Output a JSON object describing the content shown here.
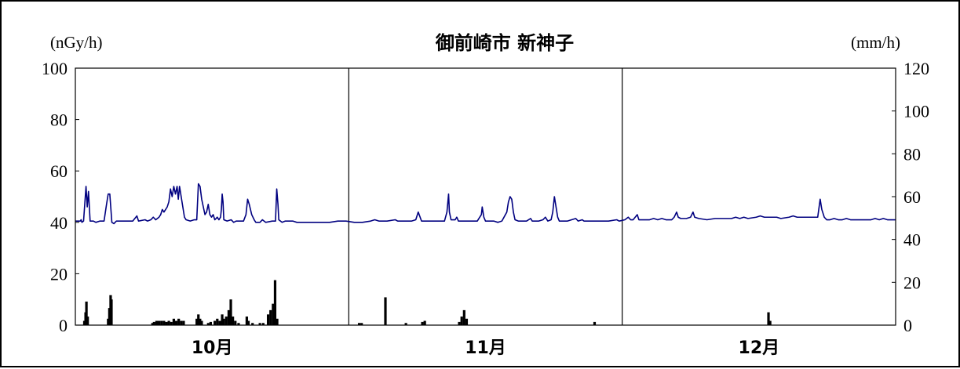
{
  "chart_data": {
    "type": "line",
    "title": "御前崎市 新神子",
    "left_axis_unit": "(nGy/h)",
    "right_axis_unit": "(mm/h)",
    "categories": [
      "10月",
      "11月",
      "12月"
    ],
    "y_left": {
      "min": 0,
      "max": 100,
      "ticks": [
        "0",
        "20",
        "40",
        "60",
        "80",
        "100"
      ]
    },
    "y_right": {
      "min": 0,
      "max": 120,
      "ticks": [
        "0",
        "20",
        "40",
        "60",
        "80",
        "100",
        "120"
      ]
    },
    "series": [
      {
        "axis": "left",
        "color": "#000080",
        "type": "line",
        "baseline": 40.5,
        "points": [
          [
            0.0,
            40.5
          ],
          [
            0.6,
            40.5
          ],
          [
            0.7,
            41
          ],
          [
            0.8,
            40
          ],
          [
            1.0,
            40.5
          ],
          [
            1.3,
            54
          ],
          [
            1.45,
            46
          ],
          [
            1.6,
            52
          ],
          [
            1.8,
            40.5
          ],
          [
            2.2,
            40.5
          ],
          [
            2.5,
            40
          ],
          [
            3.0,
            40.5
          ],
          [
            3.5,
            40.5
          ],
          [
            3.8,
            47
          ],
          [
            4.0,
            51
          ],
          [
            4.2,
            51
          ],
          [
            4.45,
            40
          ],
          [
            4.7,
            39.5
          ],
          [
            5.0,
            40.5
          ],
          [
            6.0,
            40.5
          ],
          [
            7.0,
            40.5
          ],
          [
            7.5,
            42.5
          ],
          [
            7.7,
            40.5
          ],
          [
            8.5,
            41
          ],
          [
            8.8,
            40.5
          ],
          [
            9.2,
            41
          ],
          [
            9.5,
            42
          ],
          [
            9.8,
            41
          ],
          [
            10.0,
            41.5
          ],
          [
            10.2,
            42
          ],
          [
            10.4,
            43
          ],
          [
            10.6,
            45
          ],
          [
            10.8,
            44
          ],
          [
            11.0,
            45
          ],
          [
            11.2,
            46
          ],
          [
            11.4,
            48
          ],
          [
            11.6,
            53
          ],
          [
            11.8,
            50
          ],
          [
            12.0,
            54
          ],
          [
            12.2,
            51
          ],
          [
            12.4,
            54
          ],
          [
            12.55,
            49
          ],
          [
            12.7,
            54
          ],
          [
            12.9,
            50
          ],
          [
            13.1,
            46
          ],
          [
            13.3,
            42
          ],
          [
            13.5,
            41
          ],
          [
            14.0,
            40.5
          ],
          [
            14.5,
            41
          ],
          [
            14.8,
            41
          ],
          [
            15.0,
            55
          ],
          [
            15.2,
            54
          ],
          [
            15.4,
            49
          ],
          [
            15.6,
            46
          ],
          [
            15.8,
            43
          ],
          [
            16.0,
            44
          ],
          [
            16.2,
            47
          ],
          [
            16.4,
            43
          ],
          [
            16.6,
            42
          ],
          [
            16.8,
            43
          ],
          [
            17.0,
            41
          ],
          [
            17.3,
            42
          ],
          [
            17.5,
            41
          ],
          [
            17.7,
            42
          ],
          [
            17.8,
            45
          ],
          [
            17.9,
            51
          ],
          [
            18.0,
            48
          ],
          [
            18.1,
            41
          ],
          [
            18.5,
            40.5
          ],
          [
            19.0,
            41
          ],
          [
            19.3,
            40
          ],
          [
            19.6,
            40.5
          ],
          [
            20.5,
            40.5
          ],
          [
            20.8,
            43
          ],
          [
            21.0,
            49
          ],
          [
            21.2,
            47
          ],
          [
            21.5,
            43
          ],
          [
            21.8,
            41
          ],
          [
            22.0,
            40
          ],
          [
            22.5,
            40
          ],
          [
            22.8,
            41
          ],
          [
            23.2,
            40
          ],
          [
            24.0,
            40.5
          ],
          [
            24.4,
            40.5
          ],
          [
            24.55,
            53
          ],
          [
            24.7,
            47
          ],
          [
            24.8,
            41
          ],
          [
            25.2,
            40
          ],
          [
            25.6,
            40.5
          ],
          [
            26.5,
            40.5
          ],
          [
            27.0,
            40
          ],
          [
            28.0,
            40
          ],
          [
            29.0,
            40
          ],
          [
            30.0,
            40
          ],
          [
            31.0,
            40
          ],
          [
            32.0,
            40.5
          ],
          [
            33.0,
            40.5
          ],
          [
            34.0,
            40
          ],
          [
            35.0,
            40
          ],
          [
            36.0,
            40.5
          ],
          [
            36.5,
            41
          ],
          [
            37.0,
            40.5
          ],
          [
            38.0,
            40.5
          ],
          [
            39.0,
            41
          ],
          [
            39.3,
            40.5
          ],
          [
            40.0,
            40.5
          ],
          [
            41.0,
            40.5
          ],
          [
            41.5,
            41
          ],
          [
            41.8,
            44
          ],
          [
            42.2,
            40.5
          ],
          [
            43.0,
            40.5
          ],
          [
            44.0,
            40.5
          ],
          [
            45.0,
            40.5
          ],
          [
            45.3,
            44
          ],
          [
            45.5,
            51
          ],
          [
            45.6,
            44
          ],
          [
            45.8,
            41
          ],
          [
            46.3,
            41
          ],
          [
            46.5,
            42
          ],
          [
            46.7,
            40.5
          ],
          [
            47.0,
            40.5
          ],
          [
            48.0,
            40.5
          ],
          [
            49.0,
            40.5
          ],
          [
            49.3,
            42
          ],
          [
            49.5,
            43
          ],
          [
            49.6,
            46
          ],
          [
            49.8,
            42
          ],
          [
            50.0,
            40.5
          ],
          [
            51.0,
            40.5
          ],
          [
            51.5,
            40
          ],
          [
            52.0,
            40.5
          ],
          [
            52.6,
            44
          ],
          [
            52.8,
            48
          ],
          [
            53.0,
            50
          ],
          [
            53.2,
            49
          ],
          [
            53.4,
            44
          ],
          [
            53.6,
            41
          ],
          [
            54.0,
            40.5
          ],
          [
            55.0,
            40.5
          ],
          [
            55.5,
            41.5
          ],
          [
            55.7,
            40.5
          ],
          [
            56.5,
            40.5
          ],
          [
            57.0,
            41
          ],
          [
            57.3,
            42
          ],
          [
            57.6,
            40.5
          ],
          [
            58.0,
            41
          ],
          [
            58.2,
            44
          ],
          [
            58.4,
            50
          ],
          [
            58.6,
            46
          ],
          [
            58.8,
            42
          ],
          [
            59.0,
            40.5
          ],
          [
            60.0,
            40.5
          ],
          [
            60.5,
            41
          ],
          [
            61.0,
            41.5
          ],
          [
            61.3,
            40.5
          ],
          [
            61.8,
            41
          ],
          [
            62.0,
            40.5
          ],
          [
            63.0,
            40.5
          ],
          [
            64.0,
            40.5
          ],
          [
            65.0,
            40.5
          ],
          [
            66.0,
            41
          ],
          [
            66.3,
            40.5
          ],
          [
            67.0,
            41
          ],
          [
            67.4,
            42
          ],
          [
            67.7,
            41
          ],
          [
            68.0,
            41
          ],
          [
            68.5,
            43
          ],
          [
            68.7,
            41
          ],
          [
            69.0,
            41
          ],
          [
            70.0,
            41
          ],
          [
            70.5,
            41.5
          ],
          [
            71.0,
            41
          ],
          [
            71.5,
            41.5
          ],
          [
            72.0,
            41
          ],
          [
            72.7,
            41
          ],
          [
            73.0,
            42
          ],
          [
            73.3,
            44
          ],
          [
            73.5,
            42
          ],
          [
            73.8,
            41.5
          ],
          [
            74.5,
            41.5
          ],
          [
            75.0,
            42
          ],
          [
            75.3,
            44
          ],
          [
            75.5,
            42
          ],
          [
            76.0,
            41.5
          ],
          [
            77.0,
            41
          ],
          [
            78.0,
            41.5
          ],
          [
            79.0,
            41.5
          ],
          [
            80.0,
            41.5
          ],
          [
            80.5,
            42
          ],
          [
            81.0,
            41.5
          ],
          [
            81.5,
            42
          ],
          [
            82.0,
            41.5
          ],
          [
            83.0,
            42
          ],
          [
            83.5,
            42.5
          ],
          [
            84.0,
            42
          ],
          [
            84.5,
            42
          ],
          [
            85.0,
            42
          ],
          [
            85.5,
            42
          ],
          [
            86.0,
            41.5
          ],
          [
            87.0,
            42
          ],
          [
            87.5,
            42.5
          ],
          [
            88.0,
            42
          ],
          [
            88.5,
            42
          ],
          [
            89.0,
            42
          ],
          [
            89.5,
            42
          ],
          [
            90.0,
            42
          ],
          [
            90.5,
            42
          ],
          [
            90.8,
            49
          ],
          [
            91.0,
            45
          ],
          [
            91.3,
            42
          ],
          [
            91.6,
            41
          ],
          [
            92.0,
            41
          ],
          [
            92.5,
            41.5
          ],
          [
            93.0,
            41
          ],
          [
            93.5,
            41
          ],
          [
            94.0,
            41.5
          ],
          [
            94.5,
            41
          ],
          [
            95.0,
            41
          ],
          [
            96.0,
            41
          ],
          [
            97.0,
            41
          ],
          [
            97.5,
            41.5
          ],
          [
            98.0,
            41
          ],
          [
            98.5,
            41.5
          ],
          [
            99.0,
            41
          ],
          [
            100.0,
            41
          ]
        ]
      },
      {
        "axis": "right",
        "color": "#000000",
        "type": "bar",
        "bars": [
          [
            1.1,
            2
          ],
          [
            1.25,
            6
          ],
          [
            1.35,
            11
          ],
          [
            1.5,
            4
          ],
          [
            4.0,
            3
          ],
          [
            4.15,
            8
          ],
          [
            4.3,
            14
          ],
          [
            4.4,
            12
          ],
          [
            9.4,
            1
          ],
          [
            9.6,
            1.5
          ],
          [
            9.9,
            2
          ],
          [
            10.2,
            2
          ],
          [
            10.5,
            2
          ],
          [
            10.8,
            2
          ],
          [
            11.1,
            1.5
          ],
          [
            11.4,
            2
          ],
          [
            11.7,
            1.5
          ],
          [
            12.0,
            3
          ],
          [
            12.3,
            2
          ],
          [
            12.6,
            3
          ],
          [
            12.9,
            2
          ],
          [
            13.2,
            2
          ],
          [
            14.8,
            3
          ],
          [
            15.0,
            5
          ],
          [
            15.2,
            3
          ],
          [
            15.4,
            2
          ],
          [
            16.2,
            1
          ],
          [
            16.5,
            1.5
          ],
          [
            17.0,
            2
          ],
          [
            17.3,
            3
          ],
          [
            17.6,
            2
          ],
          [
            17.9,
            5
          ],
          [
            18.1,
            3
          ],
          [
            18.4,
            4
          ],
          [
            18.7,
            7
          ],
          [
            18.95,
            12
          ],
          [
            19.2,
            4
          ],
          [
            19.5,
            2
          ],
          [
            19.9,
            1
          ],
          [
            20.9,
            4
          ],
          [
            21.1,
            2
          ],
          [
            21.6,
            1
          ],
          [
            22.5,
            1
          ],
          [
            22.9,
            1
          ],
          [
            23.5,
            5
          ],
          [
            23.8,
            7
          ],
          [
            24.1,
            10
          ],
          [
            24.35,
            21
          ],
          [
            24.6,
            3
          ],
          [
            34.6,
            1
          ],
          [
            34.9,
            1
          ],
          [
            37.8,
            13
          ],
          [
            40.3,
            1
          ],
          [
            42.3,
            1.5
          ],
          [
            42.6,
            2
          ],
          [
            46.8,
            1.5
          ],
          [
            47.1,
            4
          ],
          [
            47.4,
            7
          ],
          [
            47.7,
            3
          ],
          [
            63.3,
            1.5
          ],
          [
            84.5,
            6
          ],
          [
            84.7,
            2
          ]
        ]
      }
    ]
  }
}
